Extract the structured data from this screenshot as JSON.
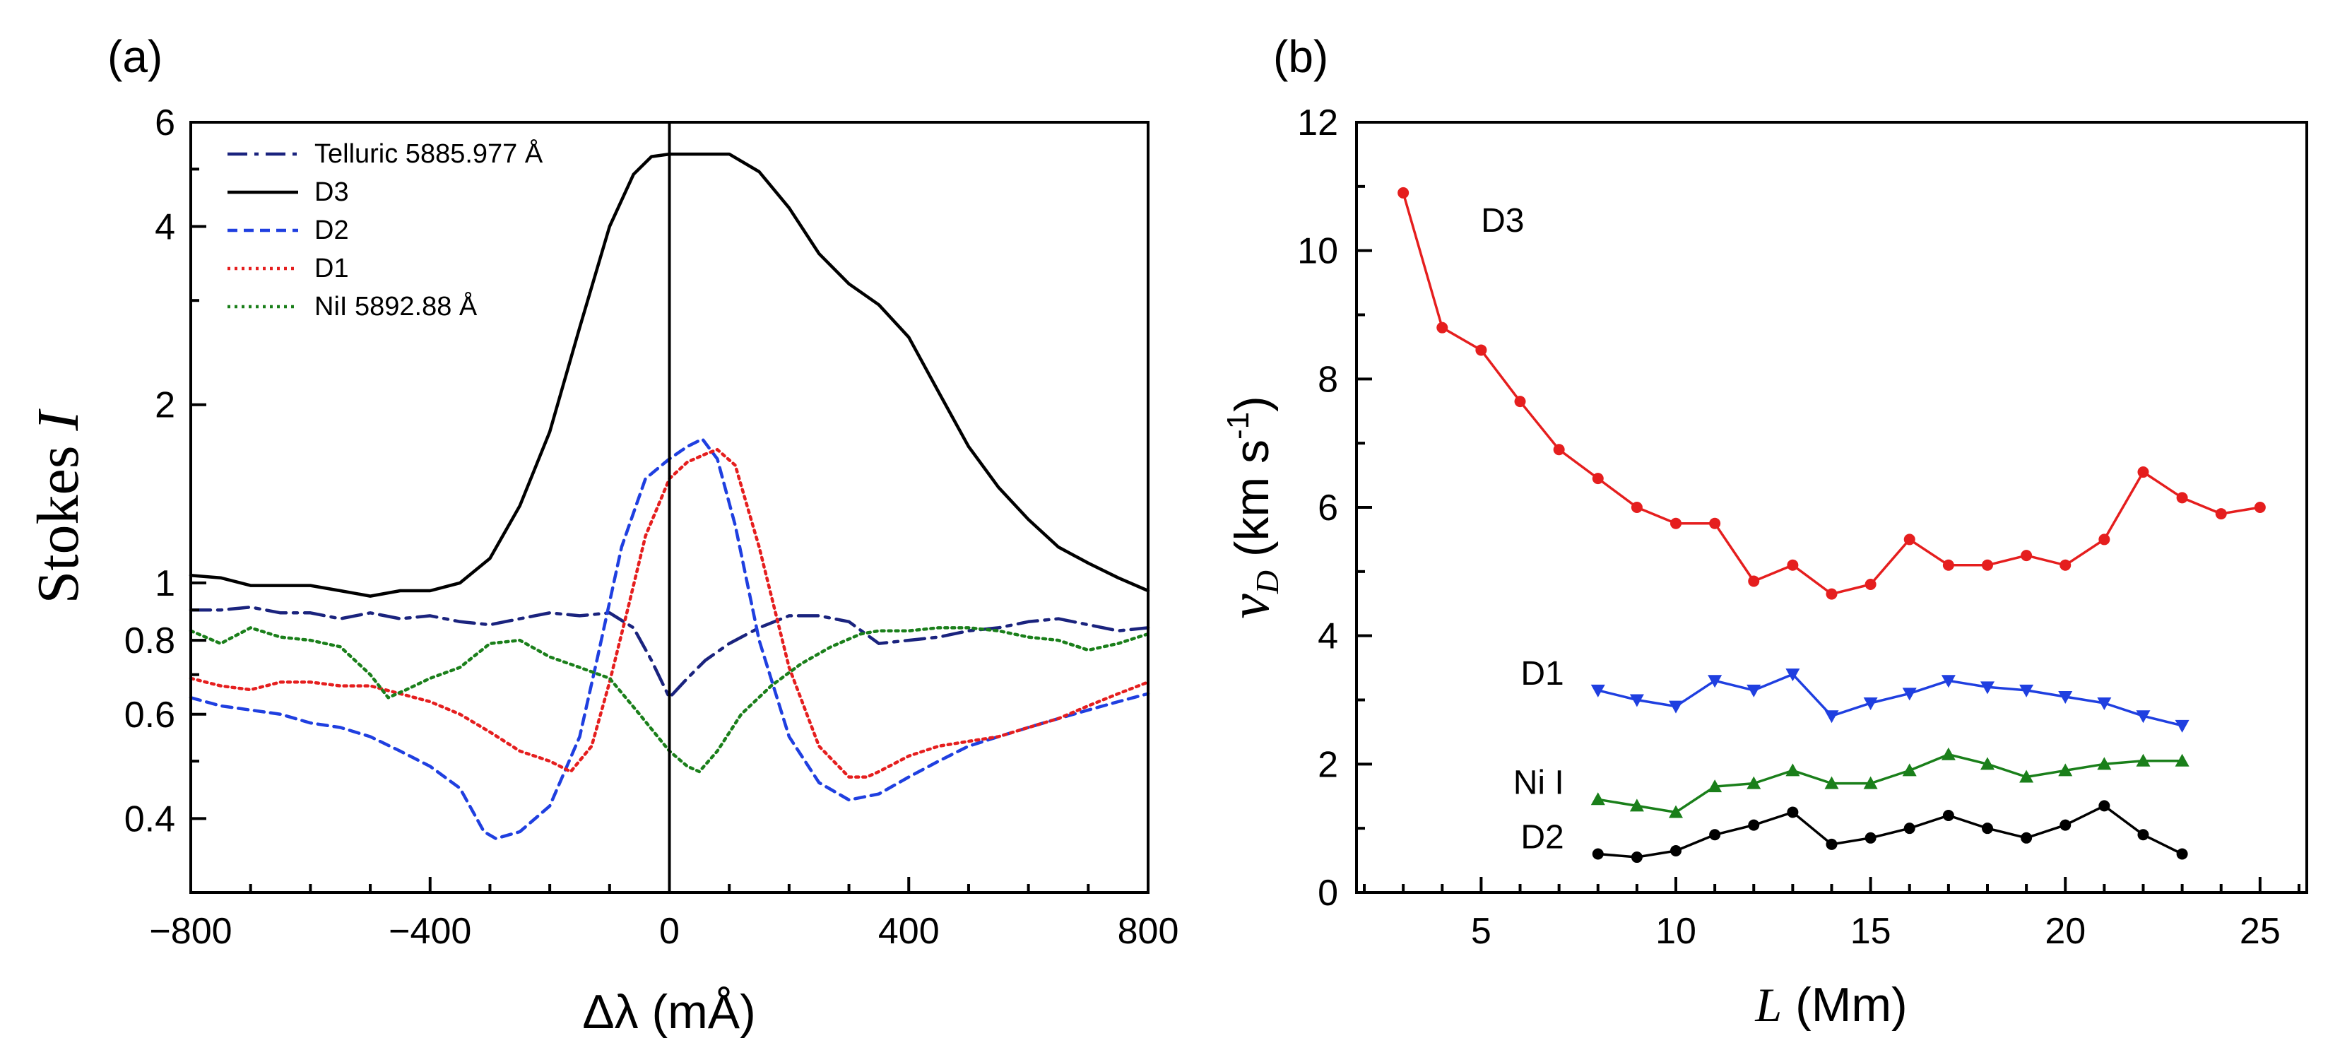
{
  "chart_data": [
    {
      "panel_label": "(a)",
      "type": "line",
      "yscale": "log",
      "xlabel": "Δλ (mÅ)",
      "ylabel": "Stokes I",
      "ylabel_main": "Stokes",
      "ylabel_italic": "I",
      "xlim": [
        -800,
        800
      ],
      "ylim": [
        0.3,
        6
      ],
      "xticks": [
        -800,
        -400,
        0,
        400,
        800
      ],
      "xtick_labels": [
        "−800",
        "−400",
        "0",
        "400",
        "800"
      ],
      "yticks": [
        0.4,
        0.6,
        0.8,
        1,
        2,
        4,
        6
      ],
      "ytick_labels": [
        "0.4",
        "0.6",
        "0.8",
        "1",
        "2",
        "4",
        "6"
      ],
      "vline_x": 0,
      "legend_position": "top-left",
      "series": [
        {
          "name": "Telluric 5885.977 Å",
          "color": "#1a237e",
          "dash": "28,10,6,10",
          "x": [
            -800,
            -750,
            -700,
            -650,
            -600,
            -550,
            -500,
            -450,
            -400,
            -350,
            -300,
            -250,
            -200,
            -150,
            -100,
            -60,
            -30,
            0,
            30,
            60,
            100,
            150,
            200,
            250,
            300,
            350,
            400,
            450,
            500,
            550,
            600,
            650,
            700,
            750,
            800
          ],
          "y": [
            0.9,
            0.9,
            0.91,
            0.89,
            0.89,
            0.87,
            0.89,
            0.87,
            0.88,
            0.86,
            0.85,
            0.87,
            0.89,
            0.88,
            0.89,
            0.84,
            0.74,
            0.64,
            0.69,
            0.74,
            0.79,
            0.84,
            0.88,
            0.88,
            0.86,
            0.79,
            0.8,
            0.81,
            0.83,
            0.84,
            0.86,
            0.87,
            0.85,
            0.83,
            0.84
          ]
        },
        {
          "name": "D3",
          "color": "#000000",
          "dash": "",
          "x": [
            -800,
            -750,
            -700,
            -650,
            -600,
            -550,
            -500,
            -450,
            -400,
            -350,
            -300,
            -250,
            -200,
            -150,
            -100,
            -60,
            -30,
            0,
            50,
            100,
            150,
            200,
            250,
            300,
            350,
            400,
            450,
            500,
            550,
            600,
            650,
            700,
            750,
            800
          ],
          "y": [
            1.03,
            1.02,
            0.99,
            0.99,
            0.99,
            0.97,
            0.95,
            0.97,
            0.97,
            1.0,
            1.1,
            1.35,
            1.8,
            2.7,
            4.0,
            4.9,
            5.25,
            5.3,
            5.3,
            5.3,
            4.95,
            4.3,
            3.6,
            3.2,
            2.95,
            2.6,
            2.1,
            1.7,
            1.45,
            1.28,
            1.15,
            1.08,
            1.02,
            0.97
          ]
        },
        {
          "name": "D2",
          "color": "#1f3fe0",
          "dash": "14,9",
          "x": [
            -800,
            -750,
            -700,
            -650,
            -600,
            -550,
            -500,
            -450,
            -400,
            -350,
            -310,
            -290,
            -250,
            -200,
            -150,
            -120,
            -80,
            -40,
            0,
            30,
            55,
            80,
            110,
            150,
            200,
            250,
            300,
            350,
            400,
            450,
            500,
            550,
            600,
            650,
            700,
            750,
            800
          ],
          "y": [
            0.64,
            0.62,
            0.61,
            0.6,
            0.58,
            0.57,
            0.55,
            0.52,
            0.49,
            0.45,
            0.38,
            0.37,
            0.38,
            0.42,
            0.55,
            0.75,
            1.15,
            1.5,
            1.62,
            1.7,
            1.75,
            1.62,
            1.25,
            0.8,
            0.55,
            0.46,
            0.43,
            0.44,
            0.47,
            0.5,
            0.53,
            0.55,
            0.57,
            0.59,
            0.61,
            0.63,
            0.65
          ]
        },
        {
          "name": "D1",
          "color": "#e51e1e",
          "dash": "4,6",
          "x": [
            -800,
            -750,
            -700,
            -650,
            -600,
            -550,
            -500,
            -450,
            -400,
            -350,
            -300,
            -250,
            -200,
            -165,
            -130,
            -100,
            -70,
            -40,
            0,
            30,
            60,
            80,
            110,
            150,
            200,
            250,
            300,
            330,
            350,
            400,
            450,
            500,
            550,
            600,
            650,
            700,
            750,
            800
          ],
          "y": [
            0.69,
            0.67,
            0.66,
            0.68,
            0.68,
            0.67,
            0.67,
            0.65,
            0.63,
            0.6,
            0.56,
            0.52,
            0.5,
            0.48,
            0.53,
            0.68,
            0.9,
            1.2,
            1.5,
            1.6,
            1.65,
            1.68,
            1.58,
            1.15,
            0.72,
            0.53,
            0.47,
            0.47,
            0.48,
            0.51,
            0.53,
            0.54,
            0.55,
            0.57,
            0.59,
            0.62,
            0.65,
            0.68
          ]
        },
        {
          "name": "NiI 5892.88 Å",
          "color": "#1a7f1a",
          "dash": "4,6",
          "x": [
            -800,
            -750,
            -700,
            -650,
            -600,
            -550,
            -500,
            -470,
            -440,
            -400,
            -350,
            -300,
            -250,
            -200,
            -150,
            -100,
            -50,
            0,
            30,
            50,
            80,
            120,
            170,
            220,
            270,
            320,
            350,
            400,
            450,
            500,
            550,
            600,
            650,
            700,
            750,
            800
          ],
          "y": [
            0.83,
            0.79,
            0.84,
            0.81,
            0.8,
            0.78,
            0.7,
            0.64,
            0.66,
            0.69,
            0.72,
            0.79,
            0.8,
            0.75,
            0.72,
            0.69,
            0.6,
            0.52,
            0.49,
            0.48,
            0.52,
            0.6,
            0.67,
            0.73,
            0.78,
            0.82,
            0.83,
            0.83,
            0.84,
            0.84,
            0.83,
            0.81,
            0.8,
            0.77,
            0.79,
            0.82
          ]
        }
      ]
    },
    {
      "panel_label": "(b)",
      "type": "line",
      "xlabel": "L (Mm)",
      "xlabel_italic": "L",
      "xlabel_rest": " (Mm)",
      "ylabel": "v_D (km s^-1)",
      "ylabel_v": "v",
      "ylabel_sub": "D",
      "ylabel_units": " (km s",
      "ylabel_sup": "-1",
      "ylabel_close": ")",
      "xlim": [
        1.8,
        26.2
      ],
      "ylim": [
        0,
        12
      ],
      "xticks": [
        5,
        10,
        15,
        20,
        25
      ],
      "yticks": [
        0,
        2,
        4,
        6,
        8,
        10,
        12
      ],
      "series": [
        {
          "name": "D3",
          "color": "#e51e1e",
          "marker": "circle",
          "x": [
            3,
            4,
            5,
            6,
            7,
            8,
            9,
            10,
            11,
            12,
            13,
            14,
            15,
            16,
            17,
            18,
            19,
            20,
            21,
            22,
            23,
            24,
            25
          ],
          "y": [
            10.9,
            8.8,
            8.45,
            7.65,
            6.9,
            6.45,
            6.0,
            5.75,
            5.75,
            4.85,
            5.1,
            4.65,
            4.8,
            5.5,
            5.1,
            5.1,
            5.25,
            5.1,
            5.5,
            6.55,
            6.15,
            5.9,
            6.0
          ]
        },
        {
          "name": "D1",
          "color": "#1f3fe0",
          "marker": "triangle-down",
          "x": [
            8,
            9,
            10,
            11,
            12,
            13,
            14,
            15,
            16,
            17,
            18,
            19,
            20,
            21,
            22,
            23
          ],
          "y": [
            3.15,
            3.0,
            2.9,
            3.3,
            3.15,
            3.4,
            2.75,
            2.95,
            3.1,
            3.3,
            3.2,
            3.15,
            3.05,
            2.95,
            2.75,
            2.6
          ]
        },
        {
          "name": "Ni I",
          "color": "#1a7f1a",
          "marker": "triangle-up",
          "x": [
            8,
            9,
            10,
            11,
            12,
            13,
            14,
            15,
            16,
            17,
            18,
            19,
            20,
            21,
            22,
            23
          ],
          "y": [
            1.45,
            1.35,
            1.25,
            1.65,
            1.7,
            1.9,
            1.7,
            1.7,
            1.9,
            2.15,
            2.0,
            1.8,
            1.9,
            2.0,
            2.05,
            2.05
          ]
        },
        {
          "name": "D2",
          "color": "#000000",
          "marker": "circle",
          "x": [
            8,
            9,
            10,
            11,
            12,
            13,
            14,
            15,
            16,
            17,
            18,
            19,
            20,
            21,
            22,
            23
          ],
          "y": [
            0.6,
            0.55,
            0.65,
            0.9,
            1.05,
            1.25,
            0.75,
            0.85,
            1.0,
            1.2,
            1.0,
            0.85,
            1.05,
            1.35,
            0.9,
            0.6
          ]
        }
      ]
    }
  ]
}
